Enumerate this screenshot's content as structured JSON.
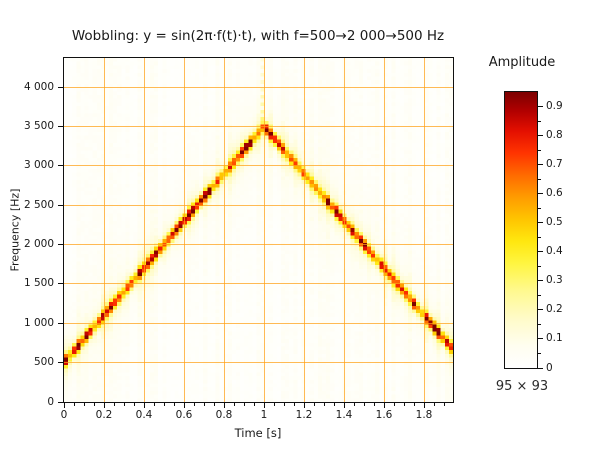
{
  "chart_data": {
    "type": "heatmap",
    "title": "Wobbling: y = sin(2π·f(t)·t), with f=500→2 000→500 Hz",
    "xlabel": "Time [s]",
    "ylabel": "Frequency [Hz]",
    "colorbar_title": "Amplitude",
    "size_label": "95 × 93",
    "grid": true,
    "xlim": [
      0,
      1.945
    ],
    "ylim": [
      0,
      4370
    ],
    "x_tick_values": [
      0,
      0.2,
      0.4,
      0.6,
      0.8,
      1,
      1.2,
      1.4,
      1.6,
      1.8
    ],
    "x_tick_labels": [
      "0",
      "0.2",
      "0.4",
      "0.6",
      "0.8",
      "1",
      "1.2",
      "1.4",
      "1.6",
      "1.8"
    ],
    "x_minor_tick_step": 0.05,
    "y_tick_values": [
      0,
      500,
      1000,
      1500,
      2000,
      2500,
      3000,
      3500,
      4000
    ],
    "y_tick_labels": [
      "0",
      "500",
      "1 000",
      "1 500",
      "2 000",
      "2 500",
      "3 000",
      "3 500",
      "4 000"
    ],
    "colorbar": {
      "min": 0,
      "max": 0.95,
      "tick_values": [
        0,
        0.1,
        0.2,
        0.3,
        0.4,
        0.5,
        0.6,
        0.7,
        0.8,
        0.9
      ],
      "tick_labels": [
        "0",
        "0.1",
        "0.2",
        "0.3",
        "0.4",
        "0.5",
        "0.6",
        "0.7",
        "0.8",
        "0.9"
      ],
      "minor_tick_step": 0.05
    },
    "heatmap": {
      "nx": 95,
      "ny": 93,
      "ridge_points": [
        [
          0,
          500
        ],
        [
          1,
          3500
        ],
        [
          1.945,
          665
        ]
      ],
      "ridge_sigma_hz": 50,
      "ridge_amp_range": [
        0.36,
        0.94
      ],
      "background_amp_range": [
        0.02,
        0.07
      ],
      "note": "STFT spectrogram ridge: instantaneous frequency rises linearly 500→3500 Hz over t=0→1 s, then falls linearly back to ~665 Hz by t≈1.95 s; ridge amplitude alternates cell-to-cell between ~0.35 and ~0.94 with a pale-yellow glow and faint vertical streaks; dashed pale column above the apex at t≈1 s"
    },
    "colormap_stops": [
      [
        0.0,
        "#ffffff"
      ],
      [
        0.08,
        "#fffef0"
      ],
      [
        0.18,
        "#fffbc8"
      ],
      [
        0.28,
        "#fff98f"
      ],
      [
        0.38,
        "#fff540"
      ],
      [
        0.46,
        "#ffe70f"
      ],
      [
        0.54,
        "#ffc400"
      ],
      [
        0.62,
        "#ff9b00"
      ],
      [
        0.7,
        "#ff6a00"
      ],
      [
        0.78,
        "#ff3300"
      ],
      [
        0.86,
        "#e30f00"
      ],
      [
        0.93,
        "#b20000"
      ],
      [
        1.0,
        "#7c0000"
      ]
    ],
    "colors": {
      "grid": "rgba(255,160,20,0.72)",
      "frame": "#111111",
      "text": "#1a1a1a",
      "background": "#ffffff"
    }
  }
}
